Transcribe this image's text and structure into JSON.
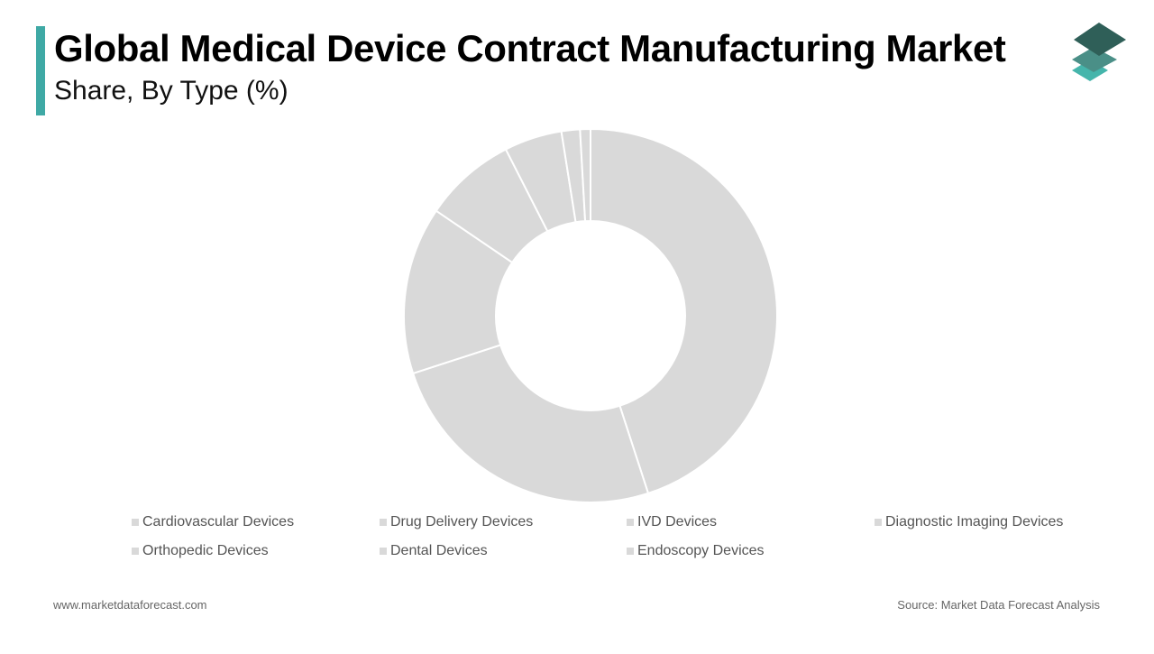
{
  "header": {
    "title": "Global Medical Device Contract Manufacturing Market",
    "subtitle": "Share, By Type (%)"
  },
  "logo": {
    "icon": "stacked-layers-logo-icon"
  },
  "colors": {
    "accent": "#3fa9a5",
    "slice_fill": "#d9d9d9",
    "slice_stroke": "#ffffff",
    "legend_swatch": "#d9d9d9",
    "logo_dark": "#2f5f58",
    "logo_mid": "#4a8f87",
    "logo_light": "#45b5ab"
  },
  "chart_data": {
    "type": "pie",
    "variant": "donut",
    "title": "Global Medical Device Contract Manufacturing Market",
    "subtitle": "Share, By Type (%)",
    "categories": [
      "Cardiovascular Devices",
      "Drug Delivery Devices",
      "IVD Devices",
      "Diagnostic Imaging Devices",
      "Orthopedic Devices",
      "Dental Devices",
      "Endoscopy Devices"
    ],
    "values": [
      45,
      25,
      14.5,
      8,
      5,
      1.6,
      0.9
    ],
    "unit": "%",
    "legend_position": "bottom"
  },
  "footer": {
    "website": "www.marketdataforecast.com",
    "source": "Source: Market Data Forecast Analysis"
  }
}
